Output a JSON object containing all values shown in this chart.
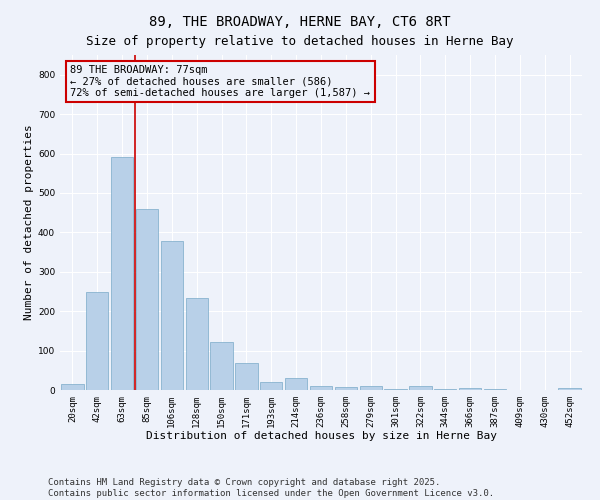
{
  "title": "89, THE BROADWAY, HERNE BAY, CT6 8RT",
  "subtitle": "Size of property relative to detached houses in Herne Bay",
  "xlabel": "Distribution of detached houses by size in Herne Bay",
  "ylabel": "Number of detached properties",
  "categories": [
    "20sqm",
    "42sqm",
    "63sqm",
    "85sqm",
    "106sqm",
    "128sqm",
    "150sqm",
    "171sqm",
    "193sqm",
    "214sqm",
    "236sqm",
    "258sqm",
    "279sqm",
    "301sqm",
    "322sqm",
    "344sqm",
    "366sqm",
    "387sqm",
    "409sqm",
    "430sqm",
    "452sqm"
  ],
  "values": [
    15,
    248,
    590,
    458,
    377,
    234,
    122,
    68,
    20,
    30,
    10,
    8,
    11,
    3,
    9,
    3,
    4,
    2,
    1,
    0,
    4
  ],
  "bar_color": "#b8d0e8",
  "bar_edge_color": "#7aaac8",
  "background_color": "#eef2fa",
  "grid_color": "#ffffff",
  "vline_index": 2.5,
  "vline_color": "#cc0000",
  "annotation_text": "89 THE BROADWAY: 77sqm\n← 27% of detached houses are smaller (586)\n72% of semi-detached houses are larger (1,587) →",
  "annotation_box_color": "#cc0000",
  "annotation_box_bg": "#eef2fa",
  "ylim": [
    0,
    850
  ],
  "yticks": [
    0,
    100,
    200,
    300,
    400,
    500,
    600,
    700,
    800
  ],
  "footer_text": "Contains HM Land Registry data © Crown copyright and database right 2025.\nContains public sector information licensed under the Open Government Licence v3.0.",
  "title_fontsize": 10,
  "subtitle_fontsize": 9,
  "xlabel_fontsize": 8,
  "ylabel_fontsize": 8,
  "tick_fontsize": 6.5,
  "annotation_fontsize": 7.5,
  "footer_fontsize": 6.5
}
